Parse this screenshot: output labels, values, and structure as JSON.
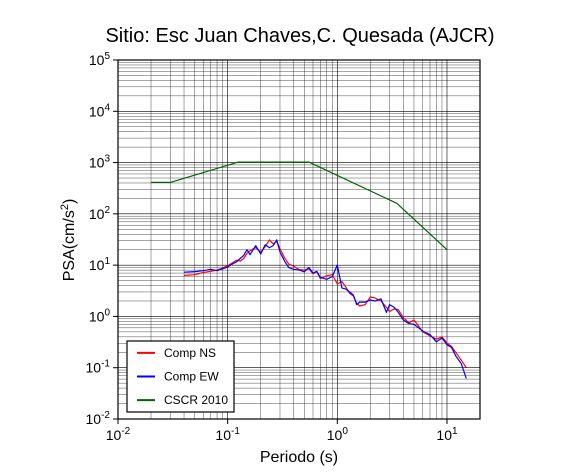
{
  "chart_data": {
    "type": "line",
    "title": "Sitio: Esc Juan Chaves,C. Quesada (AJCR)",
    "xlabel": "Periodo (s)",
    "ylabel": "PSA(cm/s2)",
    "x_scale": "log",
    "y_scale": "log",
    "xlim": [
      0.01,
      20
    ],
    "ylim": [
      0.01,
      100000
    ],
    "x_ticks": [
      0.01,
      0.1,
      1,
      10
    ],
    "y_ticks": [
      0.01,
      0.1,
      1,
      10,
      100,
      1000,
      10000,
      100000
    ],
    "x_tick_labels": [
      {
        "base": "10",
        "exp": "-2"
      },
      {
        "base": "10",
        "exp": "-1"
      },
      {
        "base": "10",
        "exp": "0"
      },
      {
        "base": "10",
        "exp": "1"
      }
    ],
    "y_tick_labels": [
      {
        "base": "10",
        "exp": "-2"
      },
      {
        "base": "10",
        "exp": "-1"
      },
      {
        "base": "10",
        "exp": "0"
      },
      {
        "base": "10",
        "exp": "1"
      },
      {
        "base": "10",
        "exp": "2"
      },
      {
        "base": "10",
        "exp": "3"
      },
      {
        "base": "10",
        "exp": "4"
      },
      {
        "base": "10",
        "exp": "5"
      }
    ],
    "grid": true,
    "legend_position": "bottom-left",
    "series": [
      {
        "name": "Comp NS",
        "color": "#ff0000",
        "x": [
          0.04,
          0.05,
          0.06,
          0.07,
          0.08,
          0.09,
          0.1,
          0.11,
          0.12,
          0.13,
          0.14,
          0.15,
          0.16,
          0.18,
          0.2,
          0.22,
          0.24,
          0.26,
          0.28,
          0.3,
          0.33,
          0.36,
          0.4,
          0.45,
          0.5,
          0.55,
          0.6,
          0.65,
          0.7,
          0.8,
          0.9,
          1.0,
          1.1,
          1.2,
          1.3,
          1.4,
          1.5,
          1.6,
          1.8,
          2.0,
          2.2,
          2.5,
          2.8,
          3.0,
          3.3,
          3.6,
          4.0,
          4.5,
          5.0,
          5.5,
          6.0,
          7.0,
          8.0,
          9.0,
          10.0,
          11.0,
          12.0,
          13.5,
          15.0
        ],
        "y": [
          6.3,
          6.5,
          7.2,
          7.6,
          8.0,
          8.8,
          9.8,
          11.0,
          12.5,
          12.0,
          13.5,
          17.0,
          19.0,
          22.0,
          18.0,
          23.0,
          31.0,
          26.0,
          29.0,
          21.0,
          14.0,
          10.5,
          9.5,
          8.2,
          8.0,
          8.5,
          6.8,
          7.5,
          5.5,
          6.2,
          6.5,
          4.3,
          4.8,
          3.7,
          2.8,
          2.5,
          1.8,
          1.6,
          1.7,
          2.4,
          2.3,
          2.0,
          1.5,
          1.25,
          1.4,
          1.35,
          0.95,
          0.75,
          0.85,
          0.65,
          0.5,
          0.42,
          0.36,
          0.4,
          0.3,
          0.26,
          0.2,
          0.14,
          0.1
        ]
      },
      {
        "name": "Comp EW",
        "color": "#0000ff",
        "x": [
          0.04,
          0.05,
          0.06,
          0.07,
          0.08,
          0.09,
          0.1,
          0.11,
          0.12,
          0.13,
          0.14,
          0.15,
          0.16,
          0.18,
          0.2,
          0.22,
          0.24,
          0.26,
          0.28,
          0.3,
          0.33,
          0.36,
          0.4,
          0.45,
          0.5,
          0.55,
          0.6,
          0.65,
          0.7,
          0.8,
          0.9,
          1.0,
          1.1,
          1.2,
          1.3,
          1.4,
          1.5,
          1.6,
          1.8,
          2.0,
          2.2,
          2.5,
          2.8,
          3.0,
          3.3,
          3.6,
          4.0,
          4.5,
          5.0,
          5.5,
          6.0,
          7.0,
          8.0,
          9.0,
          10.0,
          11.0,
          12.0,
          13.5,
          15.0
        ],
        "y": [
          7.3,
          7.5,
          7.8,
          8.3,
          7.8,
          8.5,
          9.2,
          10.5,
          11.5,
          13.5,
          15.5,
          20.0,
          16.0,
          24.0,
          16.5,
          25.0,
          22.0,
          24.0,
          31.0,
          18.0,
          12.0,
          9.0,
          8.3,
          8.0,
          7.4,
          9.0,
          7.0,
          7.6,
          5.8,
          5.3,
          6.0,
          10.0,
          3.6,
          3.4,
          3.0,
          2.6,
          1.7,
          1.9,
          1.9,
          2.1,
          2.0,
          2.2,
          1.2,
          1.7,
          1.5,
          1.2,
          0.85,
          0.72,
          0.7,
          0.6,
          0.52,
          0.44,
          0.32,
          0.38,
          0.28,
          0.25,
          0.17,
          0.12,
          0.062
        ]
      },
      {
        "name": "CSCR 2010",
        "color": "#006400",
        "x": [
          0.02,
          0.03,
          0.125,
          0.55,
          3.5,
          10.0
        ],
        "y": [
          410,
          410,
          1020,
          1020,
          160,
          20
        ]
      }
    ]
  }
}
